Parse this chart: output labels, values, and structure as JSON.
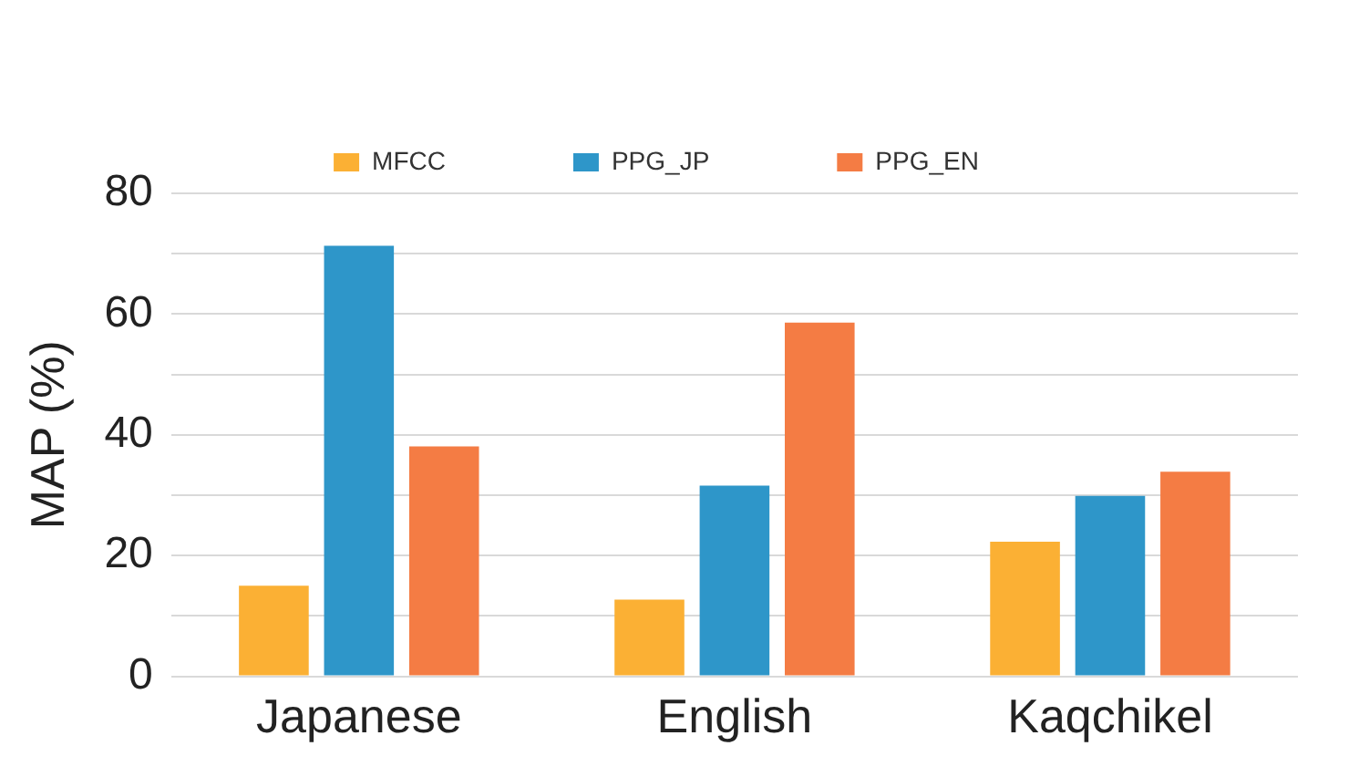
{
  "chart_data": {
    "type": "bar",
    "ylabel": "MAP (%)",
    "categories": [
      "Japanese",
      "English",
      "Kaqchikel"
    ],
    "series": [
      {
        "name": "MFCC",
        "color": "#fbb034",
        "values": [
          15,
          12.7,
          22.3
        ]
      },
      {
        "name": "PPG_JP",
        "color": "#2e96c9",
        "values": [
          71.3,
          31.6,
          29.9
        ]
      },
      {
        "name": "PPG_EN",
        "color": "#f47c44",
        "values": [
          38.1,
          58.6,
          33.9
        ]
      }
    ],
    "ylim": [
      0,
      80
    ],
    "yticks": [
      0,
      {
        "value": 10,
        "label": null
      },
      20,
      {
        "value": 30,
        "label": null
      },
      40,
      {
        "value": 50,
        "label": null
      },
      60,
      {
        "value": 70,
        "label": null
      },
      80
    ],
    "grid": "y",
    "legend": "top"
  }
}
